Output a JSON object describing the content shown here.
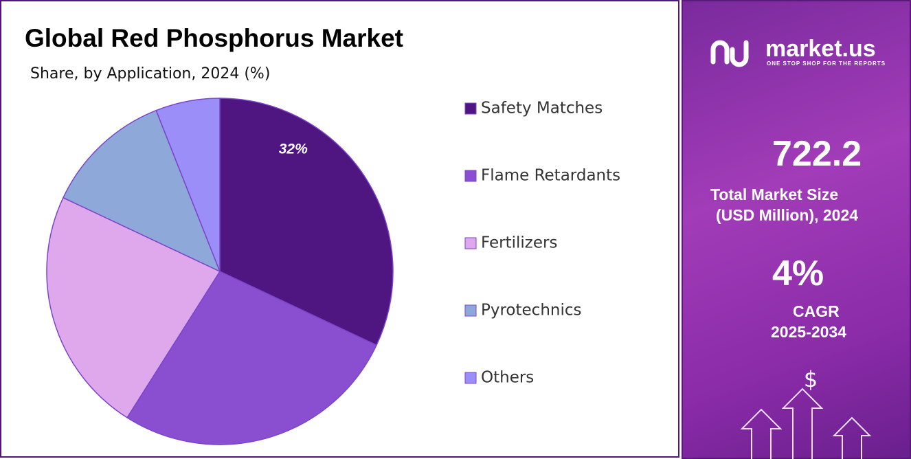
{
  "chart_data": {
    "type": "pie",
    "title": "Global Red Phosphorus Market",
    "subtitle": "Share, by Application, 2024 (%)",
    "categories": [
      "Safety Matches",
      "Flame Retardants",
      "Fertilizers",
      "Pyrotechnics",
      "Others"
    ],
    "values": [
      32,
      27,
      23,
      12,
      6
    ],
    "value_labels": [
      "32%",
      null,
      null,
      null,
      null
    ],
    "colors": [
      "#4f1682",
      "#8a4fd1",
      "#e0a8ec",
      "#8fa8da",
      "#9b8ef8"
    ]
  },
  "sidebar": {
    "brand": "market.us",
    "tagline": "ONE STOP SHOP FOR THE REPORTS",
    "market_size": "722.2",
    "market_size_label_1": "Total Market Size",
    "market_size_label_2": "(USD Million), 2024",
    "cagr": "4%",
    "cagr_label_1": "CAGR",
    "cagr_label_2": "2025-2034"
  }
}
